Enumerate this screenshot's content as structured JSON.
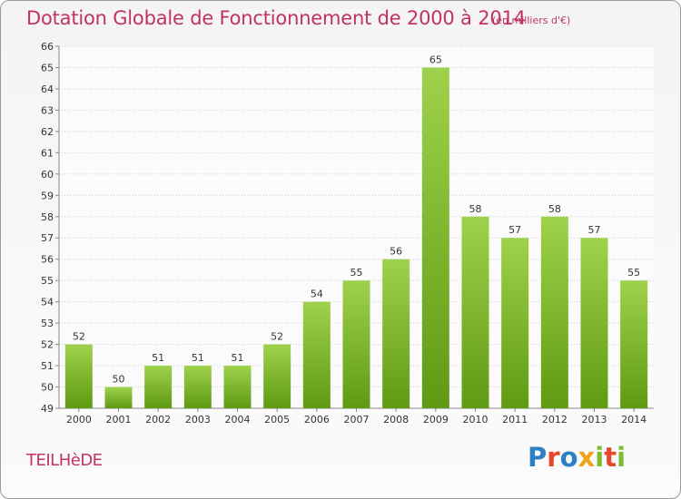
{
  "header": {
    "title": "Dotation Globale de Fonctionnement de 2000 à 2014",
    "subtitle": "(en milliers d'€)"
  },
  "footer": {
    "location": "TEILHèDE",
    "logo_text": "Proxiti"
  },
  "colors": {
    "title": "#c0335f",
    "bar_light": "#9fd24c",
    "bar_dark": "#5f9a12",
    "grid": "#cccccc",
    "axis_text": "#333333"
  },
  "chart_data": {
    "type": "bar",
    "title": "Dotation Globale de Fonctionnement de 2000 à 2014",
    "subtitle": "(en milliers d'€)",
    "categories": [
      "2000",
      "2001",
      "2002",
      "2003",
      "2004",
      "2005",
      "2006",
      "2007",
      "2008",
      "2009",
      "2010",
      "2011",
      "2012",
      "2013",
      "2014"
    ],
    "values": [
      52,
      50,
      51,
      51,
      51,
      52,
      54,
      55,
      56,
      65,
      58,
      57,
      58,
      57,
      55
    ],
    "ylim": [
      49,
      66
    ],
    "yticks": [
      49,
      50,
      51,
      52,
      53,
      54,
      55,
      56,
      57,
      58,
      59,
      60,
      61,
      62,
      63,
      64,
      65,
      66
    ],
    "grid": true,
    "data_labels": true,
    "legend": "none"
  }
}
